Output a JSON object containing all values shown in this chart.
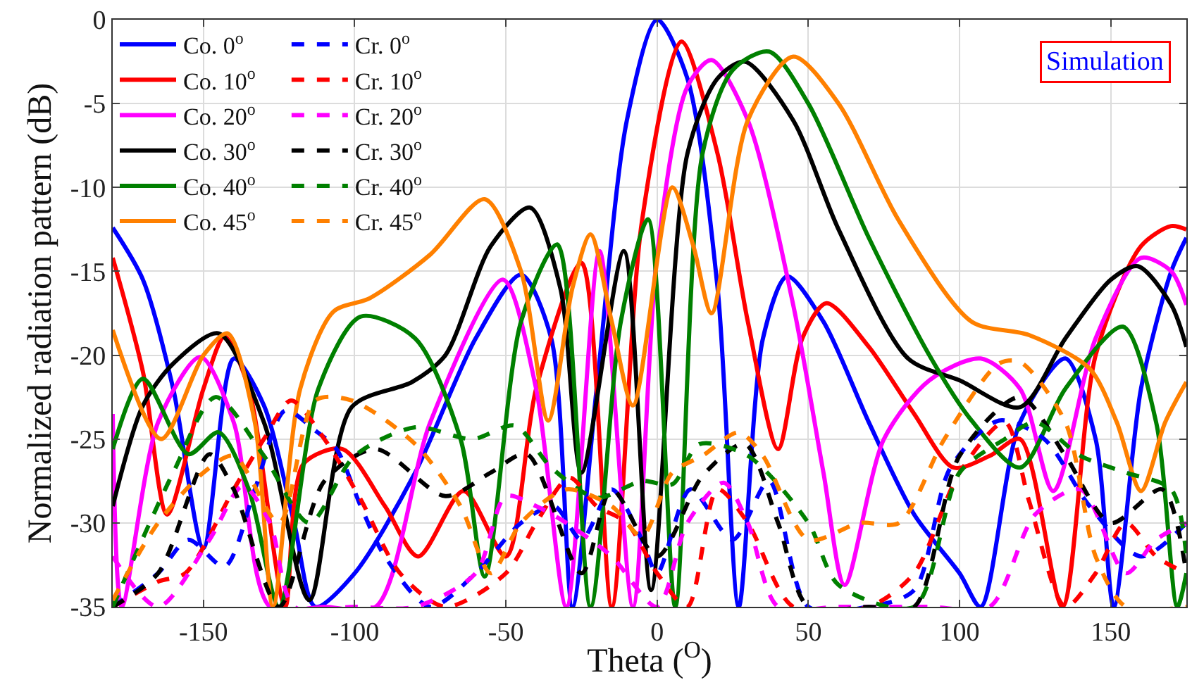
{
  "chart_data": {
    "type": "line",
    "xlabel": "Theta ($^{O}$)",
    "ylabel": "Normalized radiation pattern (dB)",
    "annotations": [
      "Simulation"
    ],
    "xlim": [
      -180,
      175
    ],
    "xticks": [
      -150,
      -100,
      -50,
      0,
      50,
      100,
      150
    ],
    "ylim": [
      -35,
      0
    ],
    "yticks": [
      -35,
      -30,
      -25,
      -20,
      -15,
      -10,
      -5,
      0
    ],
    "grid": true,
    "legend": "top left",
    "marker": "none",
    "series": [
      {
        "name": "Co. 0$^{o}$",
        "color": "#0000ff",
        "line_style": "solid",
        "x": [
          -180,
          -170,
          -160,
          -150,
          -140,
          -130,
          -120,
          -113,
          -100,
          -80,
          -60,
          -45,
          -35,
          -28,
          -20,
          -10,
          0,
          10,
          20,
          27,
          35,
          43,
          55,
          70,
          85,
          100,
          107,
          120,
          135,
          145,
          151,
          160,
          170,
          175
        ],
        "values": [
          -12.4,
          -15.5,
          -22,
          -31.5,
          -20.2,
          -23,
          -30,
          -35,
          -33,
          -27,
          -19,
          -15.2,
          -19,
          -35,
          -22,
          -6,
          0,
          -3.5,
          -16,
          -35,
          -19,
          -15.3,
          -18,
          -24,
          -29.5,
          -33,
          -35,
          -24,
          -20.2,
          -25,
          -35,
          -22,
          -15,
          -13
        ]
      },
      {
        "name": "Co. 10$^{o}$",
        "color": "#ff0000",
        "line_style": "solid",
        "x": [
          -180,
          -170,
          -162,
          -150,
          -143,
          -135,
          -123,
          -117,
          -104,
          -90,
          -79,
          -64,
          -50,
          -40,
          -25,
          -15,
          -5,
          8,
          20,
          30,
          40,
          48,
          56,
          70,
          85,
          98,
          110,
          120,
          134,
          145,
          160,
          170,
          175
        ],
        "values": [
          -14.2,
          -21,
          -29.5,
          -22,
          -18.9,
          -22,
          -35,
          -26.5,
          -25.6,
          -29,
          -32,
          -28.1,
          -32,
          -22,
          -14.5,
          -35,
          -12,
          -1.3,
          -8,
          -18,
          -25.6,
          -19,
          -16.9,
          -19.5,
          -23.5,
          -26.7,
          -26,
          -25,
          -35,
          -20,
          -13.5,
          -12.3,
          -12.5
        ]
      },
      {
        "name": "Co. 20$^{o}$",
        "color": "#ff00ff",
        "line_style": "solid",
        "x": [
          -180,
          -177,
          -165,
          -151,
          -140,
          -128,
          -110,
          -93,
          -75,
          -51,
          -40,
          -30,
          -19,
          -8,
          0,
          10,
          18,
          30,
          45,
          55,
          62,
          75,
          90,
          107,
          120,
          131,
          145,
          160,
          170,
          175
        ],
        "values": [
          -23.5,
          -35,
          -24,
          -20.1,
          -24,
          -35,
          -35,
          -35,
          -24,
          -15.5,
          -22,
          -35,
          -13.8,
          -35,
          -14,
          -4,
          -2.4,
          -6,
          -17,
          -27,
          -33.7,
          -25,
          -21.5,
          -20.2,
          -22,
          -28.1,
          -19,
          -14.2,
          -15,
          -17
        ]
      },
      {
        "name": "Co. 30$^{o}$",
        "color": "#000000",
        "line_style": "solid",
        "x": [
          -180,
          -170,
          -160,
          -145,
          -130,
          -115,
          -101,
          -81,
          -70,
          -55,
          -42,
          -32,
          -25,
          -11,
          -2,
          10,
          20,
          29,
          45,
          60,
          83,
          100,
          120,
          135,
          150,
          159,
          170,
          175
        ],
        "values": [
          -29,
          -23,
          -20.5,
          -18.7,
          -24,
          -34.6,
          -23.1,
          -21.6,
          -20,
          -13.5,
          -11.2,
          -16,
          -27,
          -13.8,
          -34,
          -8,
          -3.5,
          -2.5,
          -6,
          -12.5,
          -20.2,
          -21.5,
          -23.1,
          -19,
          -15.5,
          -14.7,
          -17,
          -19.5
        ]
      },
      {
        "name": "Co. 40$^{o}$",
        "color": "#008000",
        "line_style": "solid",
        "x": [
          -180,
          -170,
          -155,
          -145,
          -135,
          -125,
          -112,
          -98,
          -80,
          -65,
          -57,
          -45,
          -33,
          -22,
          -12,
          -3,
          6,
          15,
          25,
          37,
          50,
          70,
          90,
          104,
          120,
          135,
          154,
          165,
          172,
          175
        ],
        "values": [
          -25.6,
          -21.4,
          -25.9,
          -24.6,
          -28,
          -35,
          -22,
          -17.7,
          -19,
          -25,
          -33.2,
          -18,
          -13.4,
          -35,
          -18,
          -11.9,
          -35,
          -8,
          -3,
          -1.9,
          -5,
          -13,
          -20,
          -23.9,
          -26.7,
          -22,
          -18.3,
          -24,
          -35,
          -33
        ]
      },
      {
        "name": "Co. 45$^{o}$",
        "color": "#ff8000",
        "line_style": "solid",
        "x": [
          -180,
          -164,
          -150,
          -142,
          -133,
          -127,
          -118,
          -107,
          -95,
          -75,
          -57,
          -45,
          -36,
          -28,
          -22,
          -15,
          -8,
          5,
          12,
          18,
          30,
          45,
          60,
          80,
          104,
          123,
          143,
          152,
          160,
          168,
          175
        ],
        "values": [
          -18.5,
          -25,
          -20,
          -18.7,
          -24,
          -35,
          -22,
          -17.4,
          -16.6,
          -14,
          -10.7,
          -15,
          -23.9,
          -16,
          -12.8,
          -18,
          -23,
          -10,
          -13.5,
          -17.5,
          -6,
          -2.2,
          -5,
          -12,
          -18,
          -18.8,
          -20.8,
          -24,
          -28.1,
          -24,
          -21.6
        ]
      },
      {
        "name": "Cr. 0$^{o}$",
        "color": "#0000ff",
        "line_style": "dashed",
        "x": [
          -180,
          -165,
          -155,
          -143,
          -133,
          -123,
          -113,
          -106,
          -98,
          -90,
          -75,
          -60,
          -45,
          -34,
          -25,
          -15,
          -5,
          0,
          11,
          25,
          37,
          50,
          70,
          85,
          97,
          113,
          128,
          143,
          160,
          175
        ],
        "values": [
          -35,
          -33,
          -31,
          -32.6,
          -28,
          -23.3,
          -24.5,
          -25.6,
          -29,
          -32,
          -35,
          -33,
          -30,
          -29,
          -31,
          -28,
          -31,
          -33,
          -28,
          -31,
          -27.5,
          -35,
          -35,
          -34,
          -26.7,
          -23.9,
          -25,
          -29,
          -32,
          -30
        ]
      },
      {
        "name": "Cr. 10$^{o}$",
        "color": "#ff0000",
        "line_style": "dashed",
        "x": [
          -180,
          -165,
          -156,
          -140,
          -130,
          -121,
          -110,
          -98,
          -85,
          -70,
          -50,
          -40,
          -29,
          -20,
          -10,
          0,
          10,
          20,
          30,
          45,
          70,
          85,
          100,
          115,
          123,
          135,
          145,
          155,
          165,
          175
        ],
        "values": [
          -35,
          -33.5,
          -33,
          -28,
          -25,
          -22.7,
          -25,
          -28.6,
          -33,
          -35,
          -33,
          -30,
          -27.3,
          -29,
          -30,
          -33,
          -35,
          -28,
          -30,
          -35,
          -35,
          -33,
          -27,
          -24,
          -28.7,
          -35,
          -33,
          -30,
          -32,
          -33
        ]
      },
      {
        "name": "Cr. 20$^{o}$",
        "color": "#ff00ff",
        "line_style": "dashed",
        "x": [
          -180,
          -165,
          -148,
          -137,
          -128,
          -120,
          -100,
          -80,
          -60,
          -50,
          -40,
          -30,
          -15,
          0,
          10,
          22,
          30,
          40,
          60,
          90,
          110,
          125,
          140,
          155,
          165,
          175
        ],
        "values": [
          -32,
          -35,
          -31,
          -27.8,
          -30,
          -35,
          -35,
          -35,
          -33,
          -28.4,
          -29,
          -30,
          -32,
          -35,
          -30,
          -27.6,
          -30,
          -35,
          -35,
          -35,
          -35,
          -29.5,
          -28,
          -33,
          -31,
          -30
        ]
      },
      {
        "name": "Cr. 30$^{o}$",
        "color": "#000000",
        "line_style": "dashed",
        "x": [
          -180,
          -165,
          -148,
          -140,
          -125,
          -110,
          -93,
          -70,
          -55,
          -43,
          -25,
          -15,
          0,
          15,
          29,
          40,
          50,
          70,
          85,
          100,
          120,
          135,
          150,
          167,
          175
        ],
        "values": [
          -35,
          -33,
          -25.9,
          -28,
          -35,
          -27.5,
          -25.6,
          -28.4,
          -27,
          -25.9,
          -33,
          -28,
          -32,
          -27.2,
          -25.3,
          -30,
          -35,
          -35,
          -35,
          -26,
          -22.5,
          -26,
          -30,
          -28,
          -33
        ]
      },
      {
        "name": "Cr. 40$^{o}$",
        "color": "#008000",
        "line_style": "dashed",
        "x": [
          -180,
          -160,
          -146,
          -130,
          -115,
          -100,
          -80,
          -61,
          -47,
          -35,
          -20,
          -5,
          5,
          14,
          30,
          50,
          60,
          85,
          100,
          115,
          125,
          140,
          155,
          170,
          175
        ],
        "values": [
          -35,
          -27,
          -22.5,
          -26,
          -30,
          -26,
          -24.3,
          -25,
          -24.2,
          -26.7,
          -28.5,
          -27.5,
          -27.7,
          -25.3,
          -26,
          -30,
          -33.7,
          -35,
          -27,
          -25,
          -24,
          -26,
          -27,
          -28,
          -32
        ]
      },
      {
        "name": "Cr. 45$^{o}$",
        "color": "#ff8000",
        "line_style": "dashed",
        "x": [
          -180,
          -165,
          -150,
          -140,
          -125,
          -113,
          -101,
          -80,
          -65,
          -55,
          -45,
          -30,
          -15,
          -5,
          5,
          15,
          27,
          35,
          50,
          67,
          80,
          95,
          113,
          120,
          135,
          145,
          155,
          175
        ],
        "values": [
          -34.6,
          -30,
          -27,
          -26,
          -30,
          -22.7,
          -22.7,
          -25.3,
          -29,
          -33,
          -30,
          -28,
          -29,
          -30.8,
          -27,
          -26,
          -24.6,
          -26,
          -31,
          -30,
          -30,
          -25,
          -20.5,
          -20.4,
          -24,
          -32,
          -35,
          -35
        ]
      }
    ]
  }
}
